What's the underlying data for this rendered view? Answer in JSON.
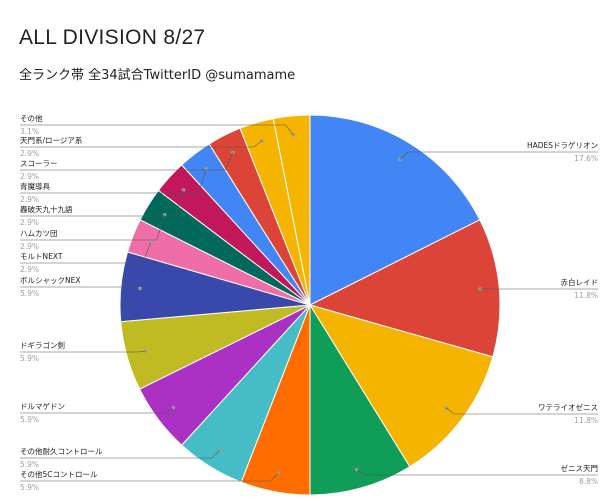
{
  "chart_data": {
    "type": "pie",
    "title": "ALL DIVISION 8/27",
    "subtitle": "全ランク帯 全34試合TwitterID @sumamame",
    "slices": [
      {
        "label": "HADESドラゲリオン",
        "value": 17.6,
        "pct_label": "17.6%",
        "color": "#4285f4"
      },
      {
        "label": "赤白レイド",
        "value": 11.8,
        "pct_label": "11.8%",
        "color": "#db4437"
      },
      {
        "label": "ワテライオゼニス",
        "value": 11.8,
        "pct_label": "11.8%",
        "color": "#f4b400"
      },
      {
        "label": "ゼニス天門",
        "value": 8.8,
        "pct_label": "8.8%",
        "color": "#0f9d58"
      },
      {
        "label": "その他5Cコントロール",
        "value": 5.9,
        "pct_label": "5.9%",
        "color": "#ff6d00"
      },
      {
        "label": "その他耐久コントロール",
        "value": 5.9,
        "pct_label": "5.9%",
        "color": "#46bdc6"
      },
      {
        "label": "ドルマゲドン",
        "value": 5.9,
        "pct_label": "5.9%",
        "color": "#ab30c4"
      },
      {
        "label": "ドギラゴン剣",
        "value": 5.9,
        "pct_label": "5.9%",
        "color": "#c0bb23"
      },
      {
        "label": "ボルシャックNEX",
        "value": 5.9,
        "pct_label": "5.9%",
        "color": "#3949ab"
      },
      {
        "label": "モルトNEXT",
        "value": 2.9,
        "pct_label": "2.9%",
        "color": "#f06ea8"
      },
      {
        "label": "ハムカツ団",
        "value": 2.9,
        "pct_label": "2.9%",
        "color": "#00695c"
      },
      {
        "label": "轟破天九十九語",
        "value": 2.9,
        "pct_label": "2.9%",
        "color": "#c2185b"
      },
      {
        "label": "青魔導具",
        "value": 2.9,
        "pct_label": "2.9%",
        "color": "#4285f4"
      },
      {
        "label": "スコーラー",
        "value": 2.9,
        "pct_label": "2.9%",
        "color": "#db4437"
      },
      {
        "label": "天門系/ロージア系",
        "value": 2.9,
        "pct_label": "2.9%",
        "color": "#f4b400"
      },
      {
        "label": "その他",
        "value": 3.1,
        "pct_label": "3.1%",
        "color": "#f4b400"
      }
    ],
    "legend_placement": "labels beside slices"
  }
}
